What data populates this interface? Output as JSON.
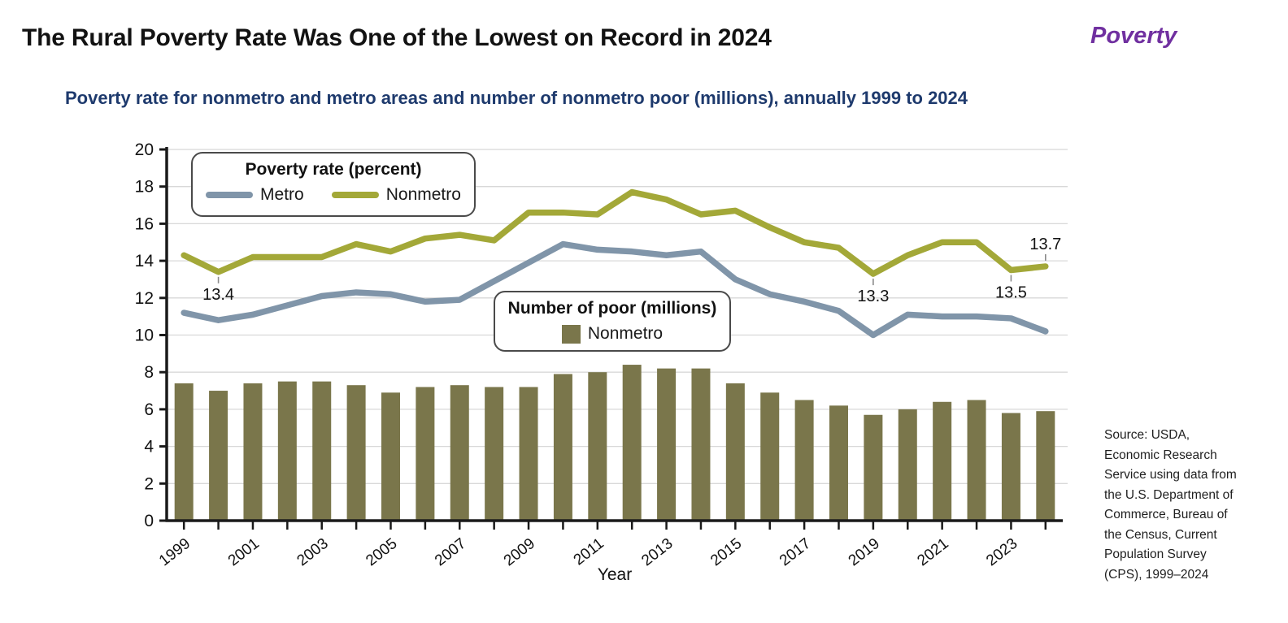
{
  "header": {
    "title": "The Rural Poverty Rate Was One of the Lowest on Record in 2024",
    "brand": "Poverty",
    "subtitle": "Poverty rate for nonmetro and metro areas and number of nonmetro poor (millions), annually 1999 to 2024"
  },
  "legend_rate": {
    "title": "Poverty rate (percent)",
    "metro_label": "Metro",
    "nonmetro_label": "Nonmetro"
  },
  "legend_poor": {
    "title": "Number of poor (millions)",
    "nonmetro_label": "Nonmetro"
  },
  "source_note": "Source: USDA,\nEconomic Research\nService using data from\nthe U.S. Department of\nCommerce, Bureau of\nthe Census, Current\nPopulation Survey\n(CPS), 1999–2024",
  "colors": {
    "metro_line": "#8095a9",
    "nonmetro_line": "#a3a838",
    "nonmetro_bar": "#7a764b",
    "subtitle_text": "#1e3a6d",
    "brand_text": "#7030a0",
    "grid": "#d8d8d8",
    "axis": "#1a1a1a",
    "annotation_leader": "#8a8a8a"
  },
  "chart_data": {
    "type": "line+bar",
    "title": "",
    "xlabel": "Year",
    "ylabel": "",
    "ylim": [
      0,
      20
    ],
    "ytick_step": 2,
    "grid": "horizontal",
    "legend_position": [
      "inside-top-left",
      "inside-center"
    ],
    "x": [
      1999,
      2000,
      2001,
      2002,
      2003,
      2004,
      2005,
      2006,
      2007,
      2008,
      2009,
      2010,
      2011,
      2012,
      2013,
      2014,
      2015,
      2016,
      2017,
      2018,
      2019,
      2020,
      2021,
      2022,
      2023,
      2024
    ],
    "xtick_label_years": [
      1999,
      2001,
      2003,
      2005,
      2007,
      2009,
      2011,
      2013,
      2015,
      2017,
      2019,
      2021,
      2023
    ],
    "series": [
      {
        "name": "Metro",
        "group": "Poverty rate (percent)",
        "type": "line",
        "values": [
          11.2,
          10.8,
          11.1,
          11.6,
          12.1,
          12.3,
          12.2,
          11.8,
          11.9,
          12.9,
          13.9,
          14.9,
          14.6,
          14.5,
          14.3,
          14.5,
          13.0,
          12.2,
          11.8,
          11.3,
          10.0,
          11.1,
          11.0,
          11.0,
          10.9,
          10.2
        ]
      },
      {
        "name": "Nonmetro",
        "group": "Poverty rate (percent)",
        "type": "line",
        "values": [
          14.3,
          13.4,
          14.2,
          14.2,
          14.2,
          14.9,
          14.5,
          15.2,
          15.4,
          15.1,
          16.6,
          16.6,
          16.5,
          17.7,
          17.3,
          16.5,
          16.7,
          15.8,
          15.0,
          14.7,
          13.3,
          14.3,
          15.0,
          15.0,
          13.5,
          13.7
        ]
      },
      {
        "name": "Nonmetro",
        "group": "Number of poor (millions)",
        "type": "bar",
        "values": [
          7.4,
          7.0,
          7.4,
          7.5,
          7.5,
          7.3,
          6.9,
          7.2,
          7.3,
          7.2,
          7.2,
          7.9,
          8.0,
          8.4,
          8.2,
          8.2,
          7.4,
          6.9,
          6.5,
          6.2,
          5.7,
          6.0,
          6.4,
          6.5,
          5.8,
          5.9
        ]
      }
    ],
    "annotations": [
      {
        "year": 2000,
        "value": 13.4,
        "label": "13.4",
        "placement": "below"
      },
      {
        "year": 2019,
        "value": 13.3,
        "label": "13.3",
        "placement": "below"
      },
      {
        "year": 2023,
        "value": 13.5,
        "label": "13.5",
        "placement": "below"
      },
      {
        "year": 2024,
        "value": 13.7,
        "label": "13.7",
        "placement": "above"
      }
    ]
  }
}
